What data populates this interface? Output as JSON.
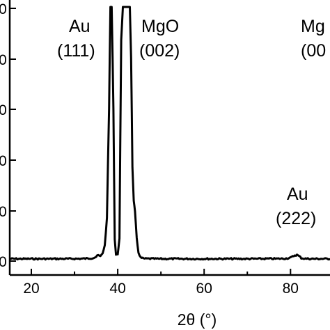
{
  "chart_data": {
    "type": "line",
    "title": "",
    "xlabel": "2θ (°)",
    "ylabel": "",
    "xlim": [
      15,
      90
    ],
    "x_ticks": [
      "20",
      "40",
      "60",
      "80"
    ],
    "x_tick_values": [
      20,
      40,
      60,
      80
    ],
    "y_ticks_visible": [
      "0",
      "0",
      "0",
      "0",
      "0",
      "0"
    ],
    "grid": false,
    "legend": "none",
    "series": [
      {
        "x": [
          15,
          20,
          25,
          30,
          32,
          33,
          34,
          34.5,
          35,
          35.5,
          36,
          36.5,
          37,
          37.5,
          38,
          38.3,
          38.6,
          39,
          39.3,
          39.6,
          40,
          40.4,
          40.8,
          41.2,
          41.6,
          42,
          42.4,
          42.8,
          43.1,
          43.4,
          43.7,
          44,
          44.4,
          44.8,
          45.3,
          46,
          50,
          55,
          60,
          65,
          70,
          75,
          78,
          79,
          80,
          80.5,
          81,
          81.5,
          82,
          82.5,
          83,
          84,
          86,
          88,
          90
        ],
        "y": [
          0.1,
          0.1,
          0.1,
          0.15,
          0.2,
          0.3,
          0.5,
          0.8,
          1.3,
          2.2,
          1.5,
          3.5,
          8,
          24,
          90,
          150,
          150,
          90,
          12,
          2.5,
          3,
          12,
          130,
          150,
          150,
          150,
          150,
          150,
          120,
          55,
          35,
          28,
          12,
          4,
          0.8,
          0.2,
          0.1,
          0.1,
          0.1,
          0.1,
          0.1,
          0.15,
          0.2,
          0.35,
          0.7,
          1.4,
          2.2,
          2.4,
          1.6,
          0.6,
          0.3,
          0.15,
          0.1,
          0.1,
          0.1
        ]
      }
    ],
    "annotations": [
      {
        "name": "Au",
        "index": "(111)"
      },
      {
        "name": "MgO",
        "index": "(002)"
      },
      {
        "name": "Au",
        "index": "(222)"
      },
      {
        "name": "Mg",
        "index": "(00"
      }
    ]
  }
}
